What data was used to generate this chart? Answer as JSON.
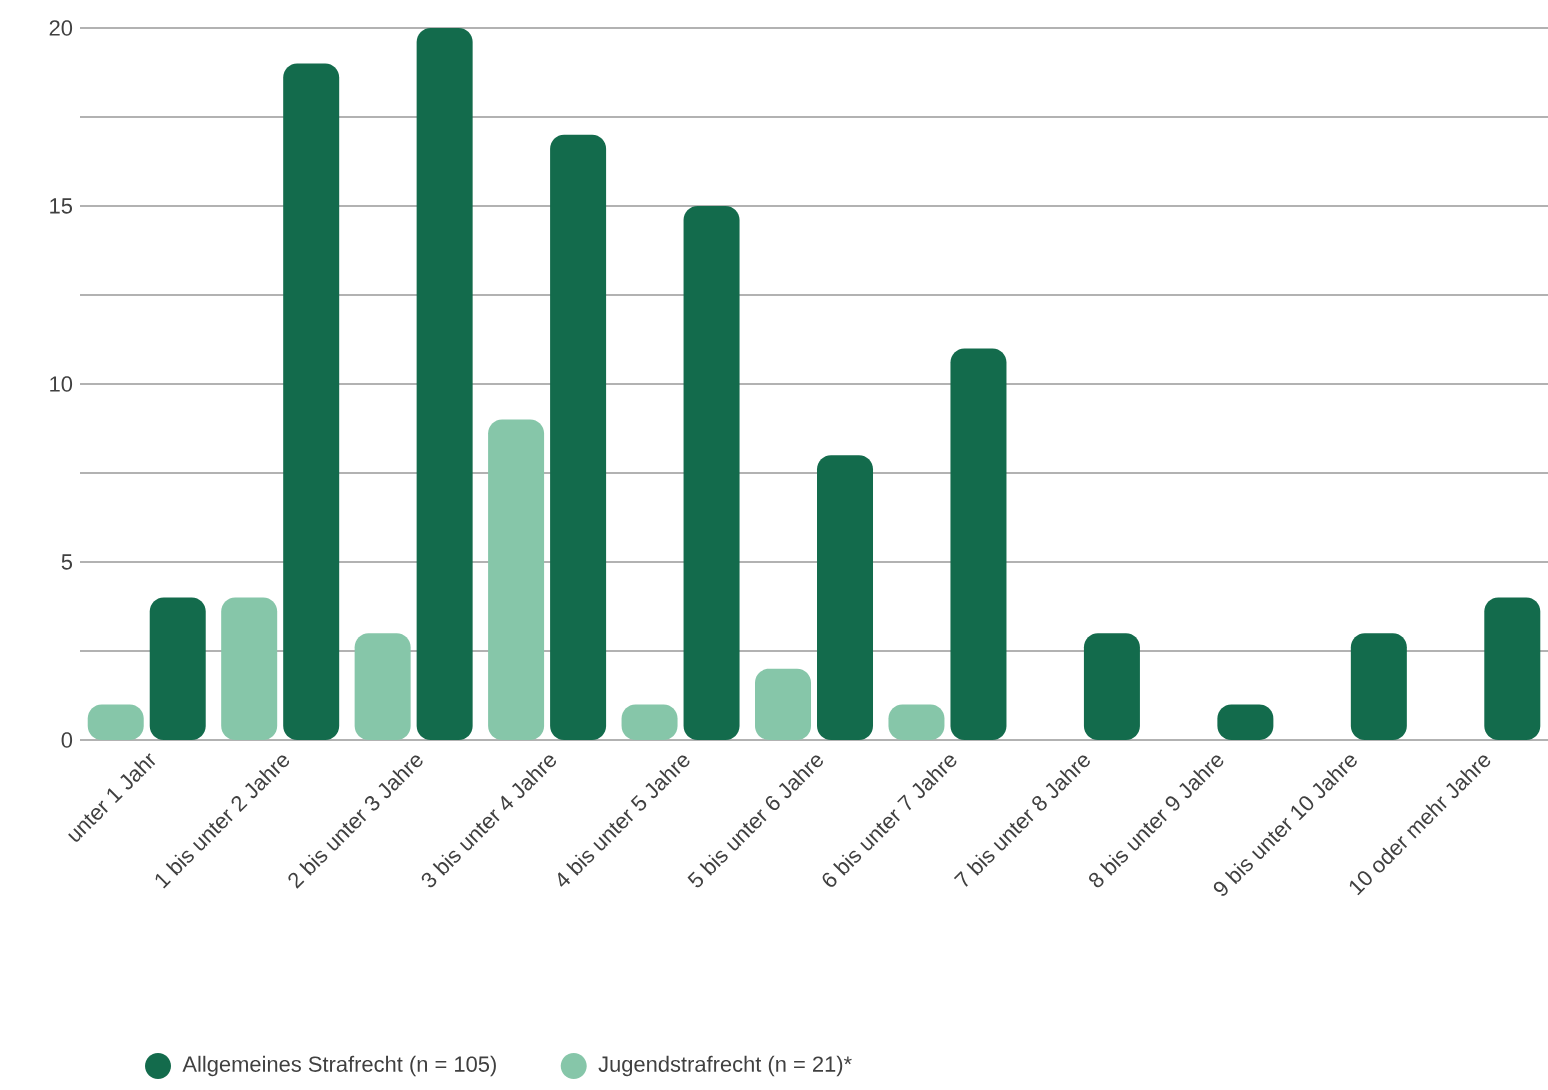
{
  "chart_data": {
    "type": "bar",
    "categories": [
      "unter 1 Jahr",
      "1 bis unter 2 Jahre",
      "2 bis unter 3 Jahre",
      "3 bis unter 4 Jahre",
      "4 bis unter 5 Jahre",
      "5 bis unter 6 Jahre",
      "6 bis unter 7 Jahre",
      "7 bis unter 8 Jahre",
      "8 bis unter 9 Jahre",
      "9 bis unter 10 Jahre",
      "10 oder mehr Jahre"
    ],
    "series": [
      {
        "name": "Allgemeines Strafrecht (n = 105)",
        "color": "#136b4c",
        "values": [
          4,
          19,
          20,
          17,
          15,
          8,
          11,
          3,
          1,
          3,
          4
        ]
      },
      {
        "name": "Jugendstrafrecht (n = 21)*",
        "color": "#86c6a9",
        "values": [
          1,
          4,
          3,
          9,
          1,
          2,
          1,
          null,
          null,
          null,
          null
        ]
      }
    ],
    "ylim": [
      0,
      20
    ],
    "yticks": [
      0,
      {
        "value": 2.5,
        "label": null
      },
      5,
      {
        "value": 7.5,
        "label": null
      },
      10,
      {
        "value": 12.5,
        "label": null
      },
      15,
      {
        "value": 17.5,
        "label": null
      },
      20
    ],
    "grid": "y",
    "legend": "bottom"
  }
}
